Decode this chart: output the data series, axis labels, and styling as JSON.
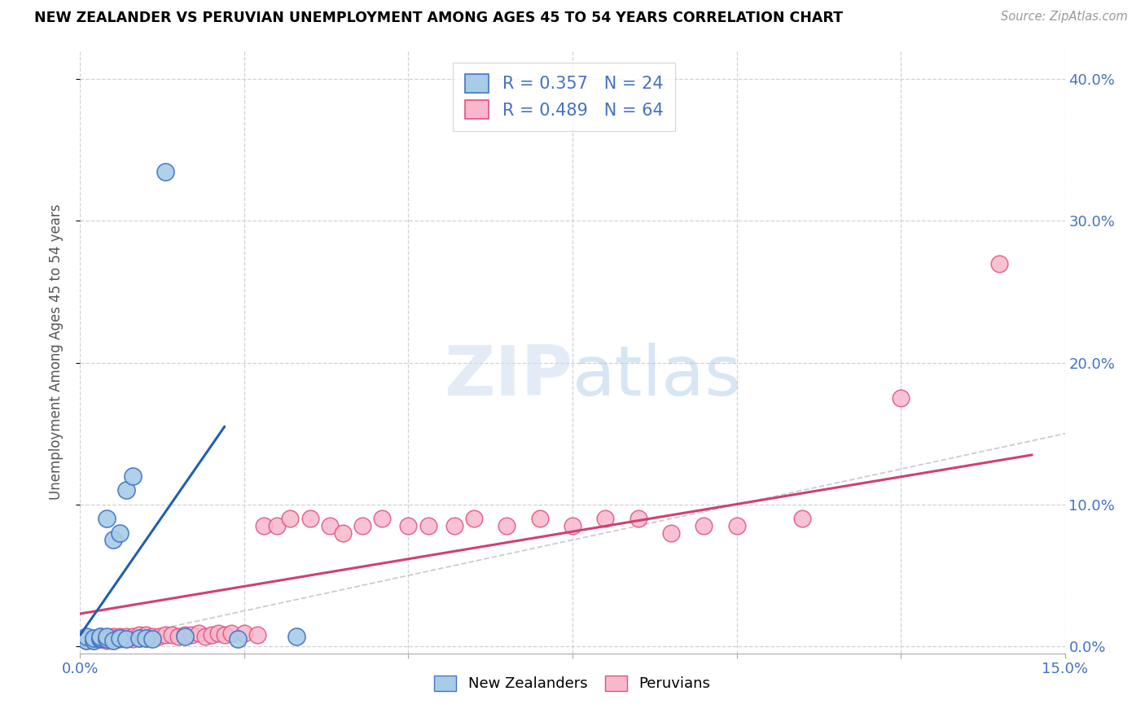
{
  "title": "NEW ZEALANDER VS PERUVIAN UNEMPLOYMENT AMONG AGES 45 TO 54 YEARS CORRELATION CHART",
  "source": "Source: ZipAtlas.com",
  "ylabel": "Unemployment Among Ages 45 to 54 years",
  "xlim": [
    0.0,
    0.15
  ],
  "ylim": [
    -0.005,
    0.42
  ],
  "xtick_positions": [
    0.0,
    0.025,
    0.05,
    0.075,
    0.1,
    0.125,
    0.15
  ],
  "xtick_labels": [
    "0.0%",
    "",
    "",
    "",
    "",
    "",
    "15.0%"
  ],
  "ytick_positions": [
    0.0,
    0.1,
    0.2,
    0.3,
    0.4
  ],
  "ytick_labels": [
    "0.0%",
    "10.0%",
    "20.0%",
    "30.0%",
    "40.0%"
  ],
  "blue_face": "#a8cce8",
  "blue_edge": "#4472c4",
  "pink_face": "#f8b8cc",
  "pink_edge": "#e05080",
  "blue_line": "#2060b0",
  "pink_line": "#d04070",
  "diag_color": "#bbbbbb",
  "R_nz": 0.357,
  "N_nz": 24,
  "R_pe": 0.489,
  "N_pe": 64,
  "legend_text_color": "#4472c4",
  "watermark_color": "#ddeeff",
  "nz_x": [
    0.001,
    0.001,
    0.002,
    0.002,
    0.003,
    0.003,
    0.003,
    0.004,
    0.004,
    0.004,
    0.005,
    0.005,
    0.006,
    0.006,
    0.007,
    0.007,
    0.008,
    0.009,
    0.01,
    0.011,
    0.013,
    0.016,
    0.024,
    0.033
  ],
  "nz_y": [
    0.004,
    0.007,
    0.004,
    0.006,
    0.005,
    0.006,
    0.007,
    0.005,
    0.007,
    0.09,
    0.004,
    0.075,
    0.006,
    0.08,
    0.005,
    0.11,
    0.12,
    0.006,
    0.006,
    0.005,
    0.335,
    0.007,
    0.005,
    0.007
  ],
  "pe_x": [
    0.001,
    0.001,
    0.001,
    0.002,
    0.002,
    0.002,
    0.003,
    0.003,
    0.003,
    0.004,
    0.004,
    0.004,
    0.005,
    0.005,
    0.005,
    0.006,
    0.006,
    0.007,
    0.007,
    0.007,
    0.008,
    0.008,
    0.009,
    0.009,
    0.01,
    0.01,
    0.011,
    0.012,
    0.013,
    0.014,
    0.015,
    0.016,
    0.017,
    0.018,
    0.019,
    0.02,
    0.021,
    0.022,
    0.023,
    0.025,
    0.027,
    0.028,
    0.03,
    0.032,
    0.035,
    0.038,
    0.04,
    0.043,
    0.046,
    0.05,
    0.053,
    0.057,
    0.06,
    0.065,
    0.07,
    0.075,
    0.08,
    0.085,
    0.09,
    0.095,
    0.1,
    0.11,
    0.125,
    0.14
  ],
  "pe_y": [
    0.004,
    0.005,
    0.006,
    0.004,
    0.005,
    0.006,
    0.005,
    0.006,
    0.007,
    0.004,
    0.005,
    0.006,
    0.004,
    0.006,
    0.007,
    0.005,
    0.007,
    0.005,
    0.006,
    0.007,
    0.005,
    0.007,
    0.006,
    0.008,
    0.006,
    0.008,
    0.007,
    0.007,
    0.008,
    0.008,
    0.007,
    0.008,
    0.008,
    0.009,
    0.007,
    0.008,
    0.009,
    0.008,
    0.009,
    0.009,
    0.008,
    0.085,
    0.085,
    0.09,
    0.09,
    0.085,
    0.08,
    0.085,
    0.09,
    0.085,
    0.085,
    0.085,
    0.09,
    0.085,
    0.09,
    0.085,
    0.09,
    0.09,
    0.08,
    0.085,
    0.085,
    0.09,
    0.175,
    0.27
  ]
}
